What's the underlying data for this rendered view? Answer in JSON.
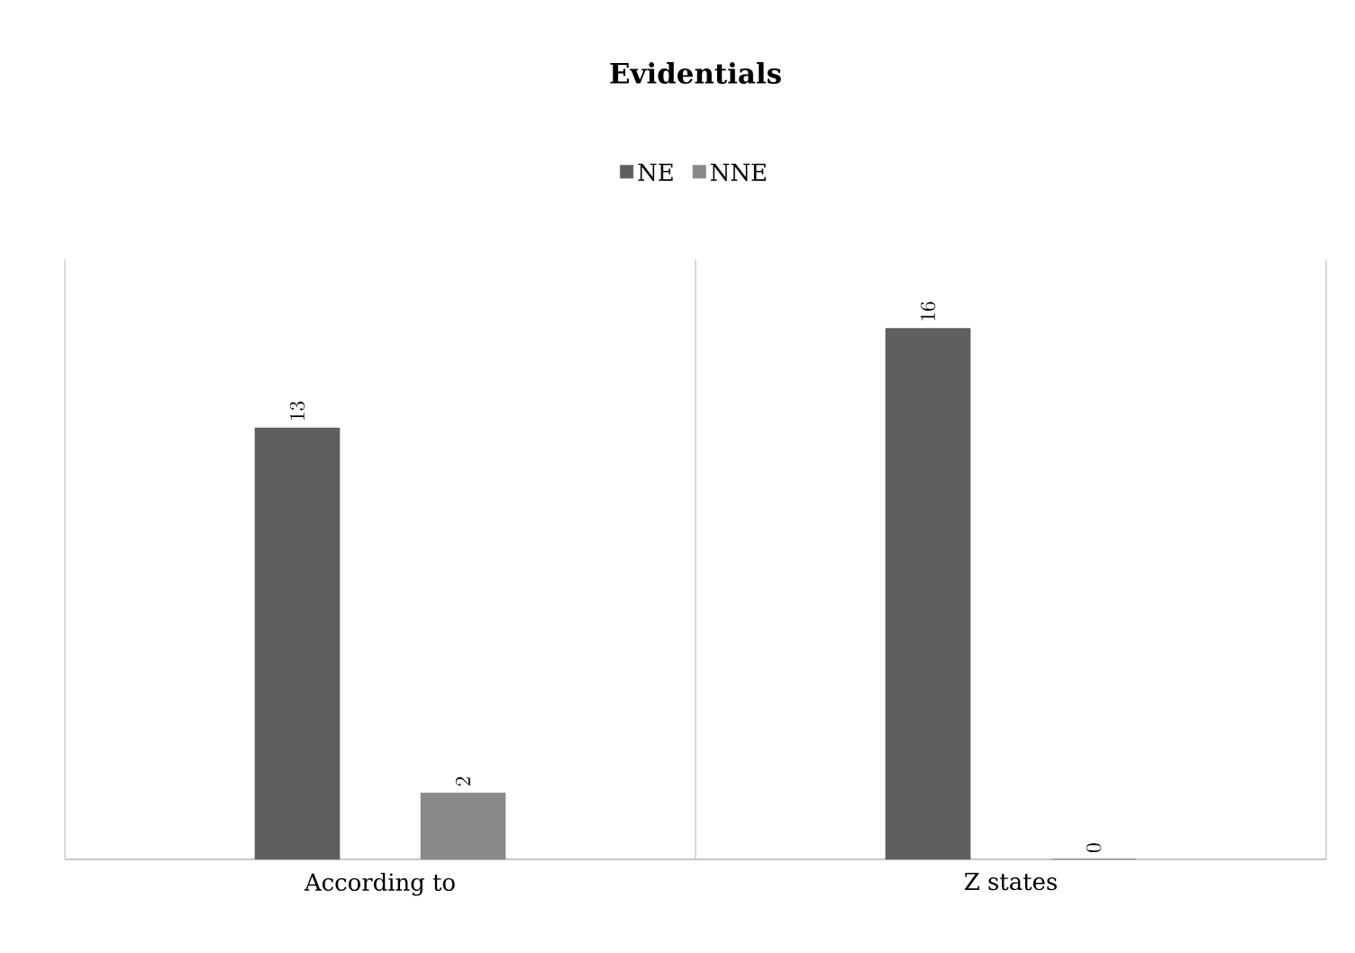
{
  "chart_data": {
    "type": "bar",
    "title": "Evidentials",
    "categories": [
      "According to",
      "Z states"
    ],
    "series": [
      {
        "name": "NE",
        "color": "#5f5f5f",
        "values": [
          13,
          16
        ]
      },
      {
        "name": "NNE",
        "color": "#8a8a8a",
        "values": [
          2,
          0
        ]
      }
    ],
    "data_labels": true,
    "grid": "x",
    "legend": "top"
  }
}
